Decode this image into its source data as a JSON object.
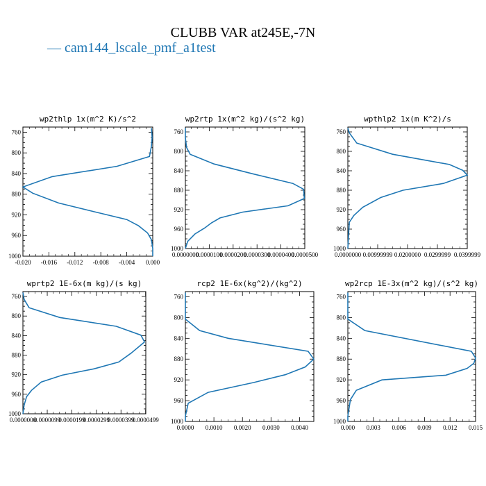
{
  "title": "CLUBB VAR at245E,-7N",
  "legend": {
    "label": "— cam144_lscale_pmf_a1test",
    "color": "#1f77b4"
  },
  "chart_data": [
    {
      "type": "line",
      "title": "wp2thlp  1x(m^2 K)/s^2",
      "xlim": [
        -0.02,
        0.0
      ],
      "ylim": [
        1000,
        750
      ],
      "xticks": [
        "-0.020",
        "-0.016",
        "-0.012",
        "-0.008",
        "-0.004",
        "0.000"
      ],
      "xtick_values": [
        -0.02,
        -0.016,
        -0.012,
        -0.008,
        -0.004,
        0.0
      ],
      "yticks": [
        760,
        800,
        840,
        880,
        920,
        960,
        1000
      ],
      "series": [
        {
          "x": [
            -0.0002,
            -0.0001,
            -0.0002,
            -0.0005,
            -0.0055,
            -0.0155,
            -0.0202,
            -0.0185,
            -0.0145,
            -0.009,
            -0.004,
            -0.0022,
            -0.0008,
            -0.0002,
            0.0,
            0.0
          ],
          "y": [
            752,
            770,
            787,
            807,
            826,
            846,
            866,
            878,
            897,
            914,
            929,
            941,
            955,
            968,
            985,
            1000
          ]
        }
      ]
    },
    {
      "type": "line",
      "title": "wp2rtp  1x(m^2 kg)/(s^2 kg)",
      "xlim": [
        0.0,
        5e-05
      ],
      "ylim": [
        1000,
        750
      ],
      "xticks": [
        "0.0000000",
        "0.0000100",
        "0.0000200",
        "0.0000300",
        "0.0000400",
        "0.0000500"
      ],
      "xtick_values": [
        0.0,
        1e-05,
        2e-05,
        3e-05,
        4e-05,
        5e-05
      ],
      "yticks": [
        760,
        800,
        840,
        880,
        920,
        960,
        1000
      ],
      "series": [
        {
          "x": [
            0.0,
            0.0,
            5e-07,
            2e-06,
            1.2e-05,
            2.8e-05,
            4.5e-05,
            4.95e-05,
            4.98e-05,
            4.3e-05,
            2.4e-05,
            1.45e-05,
            1.1e-05,
            8e-06,
            4e-06,
            1e-06,
            0.0
          ],
          "y": [
            752,
            772,
            792,
            806,
            826,
            846,
            866,
            878,
            897,
            912,
            925,
            937,
            947,
            958,
            970,
            985,
            1000
          ]
        }
      ]
    },
    {
      "type": "line",
      "title": "wpthlp2  1x(m K^2)/s",
      "xlim": [
        0.0,
        0.04
      ],
      "ylim": [
        1000,
        750
      ],
      "xticks": [
        "0.0000000",
        "0.00999999",
        "0.0200000",
        "0.0299999",
        "0.0399999"
      ],
      "xtick_values": [
        0.0,
        0.01,
        0.02,
        0.03,
        0.04
      ],
      "yticks": [
        760,
        800,
        840,
        880,
        920,
        960,
        1000
      ],
      "series": [
        {
          "x": [
            0.0,
            0.0005,
            0.003,
            0.015,
            0.034,
            0.0385,
            0.0405,
            0.032,
            0.0185,
            0.011,
            0.005,
            0.002,
            0.0005,
            0.0
          ],
          "y": [
            752,
            762,
            783,
            806,
            827,
            839,
            849,
            866,
            880,
            895,
            915,
            932,
            946,
            1000
          ]
        }
      ]
    },
    {
      "type": "line",
      "title": "wprtp2  1E-6x(m kg)/(s kg)",
      "xlim": [
        0.0,
        5e-05
      ],
      "ylim": [
        1000,
        750
      ],
      "xticks": [
        "0.0000000",
        "0.0000099",
        "0.0000199",
        "0.0000299",
        "0.0000399",
        "0.0000499"
      ],
      "xtick_values": [
        0.0,
        9.9e-06,
        1.99e-05,
        2.99e-05,
        3.99e-05,
        4.99e-05
      ],
      "yticks": [
        760,
        800,
        840,
        880,
        920,
        960,
        1000
      ],
      "series": [
        {
          "x": [
            0.0,
            5e-07,
            2.5e-06,
            1.5e-05,
            3.8e-05,
            4.8e-05,
            4.95e-05,
            4.4e-05,
            3.9e-05,
            2.9e-05,
            1.6e-05,
            7.5e-06,
            3.5e-06,
            1.5e-06,
            5e-07,
            0.0
          ],
          "y": [
            752,
            766,
            783,
            803,
            821,
            839,
            853,
            876,
            894,
            908,
            921,
            935,
            952,
            965,
            982,
            1000
          ]
        }
      ]
    },
    {
      "type": "line",
      "title": "rcp2  1E-6x(kg^2)/(kg^2)",
      "xlim": [
        0.0,
        0.0045
      ],
      "ylim": [
        1000,
        750
      ],
      "xticks": [
        "0.0000",
        "0.0010",
        "0.0020",
        "0.0030",
        "0.0040"
      ],
      "xtick_values": [
        0.0,
        0.001,
        0.002,
        0.003,
        0.004
      ],
      "yticks": [
        760,
        800,
        840,
        880,
        920,
        960,
        1000
      ],
      "series": [
        {
          "x": [
            0.0,
            0.0,
            0.0005,
            0.0015,
            0.0043,
            0.0045,
            0.0042,
            0.0035,
            0.0024,
            0.0008,
            0.0001,
            0.0,
            0.0
          ],
          "y": [
            752,
            803,
            825,
            840,
            865,
            880,
            895,
            910,
            925,
            944,
            965,
            990,
            1000
          ]
        }
      ]
    },
    {
      "type": "line",
      "title": "wp2rcp  1E-3x(m^2 kg)/(s^2 kg)",
      "xlim": [
        0.0,
        0.015
      ],
      "ylim": [
        1000,
        750
      ],
      "xticks": [
        "0.000",
        "0.003",
        "0.006",
        "0.009",
        "0.012",
        "0.015"
      ],
      "xtick_values": [
        0.0,
        0.003,
        0.006,
        0.009,
        0.012,
        0.015
      ],
      "yticks": [
        760,
        800,
        840,
        880,
        920,
        960,
        1000
      ],
      "series": [
        {
          "x": [
            0.0,
            0.0,
            0.002,
            0.0145,
            0.015,
            0.0148,
            0.014,
            0.0115,
            0.004,
            0.001,
            0.0003,
            0.0,
            0.0
          ],
          "y": [
            752,
            803,
            825,
            865,
            878,
            888,
            898,
            911,
            920,
            940,
            958,
            990,
            1000
          ]
        }
      ]
    }
  ]
}
